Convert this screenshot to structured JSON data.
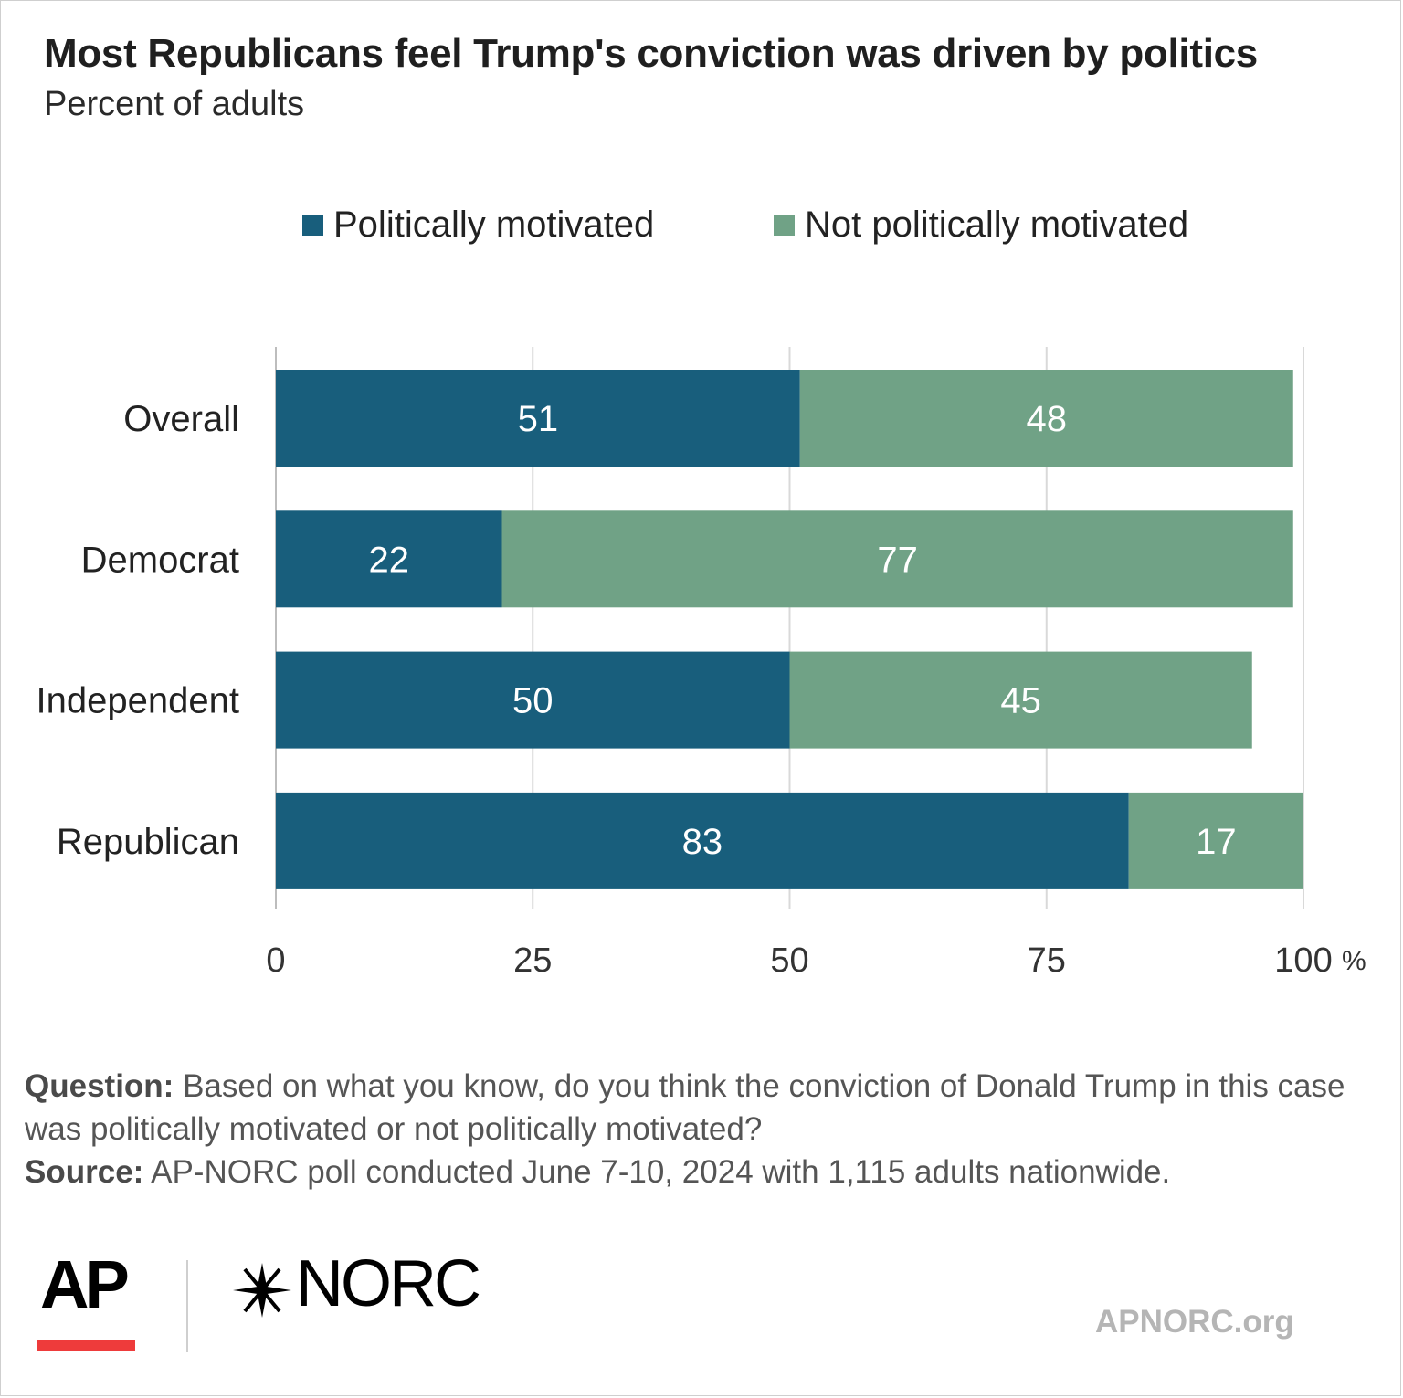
{
  "header": {
    "title": "Most Republicans feel Trump's conviction was driven by politics",
    "subtitle": "Percent of adults"
  },
  "colors": {
    "politically": "#185e7c",
    "not_politically": "#70a286",
    "grid": "#d9d9d9",
    "axis_text": "#333333"
  },
  "chart_data": {
    "type": "bar",
    "orientation": "horizontal",
    "stacked": true,
    "categories": [
      "Overall",
      "Democrat",
      "Independent",
      "Republican"
    ],
    "series": [
      {
        "name": "Politically motivated",
        "values": [
          51,
          22,
          50,
          83
        ]
      },
      {
        "name": "Not politically motivated",
        "values": [
          48,
          77,
          45,
          17
        ]
      }
    ],
    "xlim": [
      0,
      100
    ],
    "x_ticks": [
      "0",
      "25",
      "50",
      "75",
      "100"
    ],
    "x_unit": "%",
    "grid": true,
    "legend_position": "top"
  },
  "notes": {
    "question_label": "Question:",
    "question_text": "Based on what you know, do you think the conviction of Donald Trump in this case was politically motivated or not politically motivated?",
    "source_label": "Source:",
    "source_text": "AP-NORC poll conducted June 7-10, 2024 with 1,115 adults nationwide."
  },
  "footer": {
    "ap_logo": "AP",
    "norc_logo": "NORC",
    "site": "APNORC.org"
  }
}
